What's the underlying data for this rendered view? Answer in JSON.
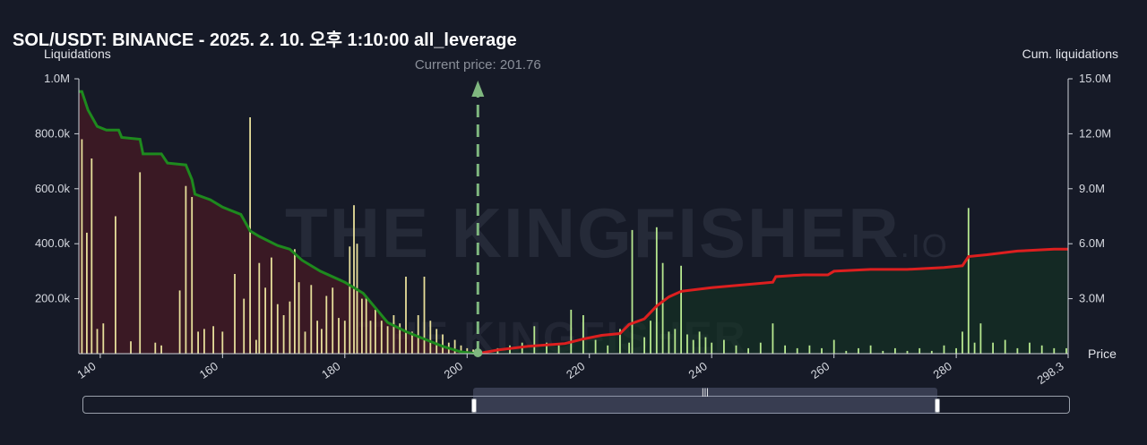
{
  "title": "SOL/USDT: BINANCE - 2025. 2. 10. 오후 1:10:00 all_leverage",
  "left_axis_title": "Liquidations",
  "right_axis_title": "Cum. liquidations",
  "x_axis_title": "Price",
  "current_price_label": "Current price: 201.76",
  "watermark": {
    "brand": "THE KINGFISHER",
    "suffix": ".IO"
  },
  "colors": {
    "background": "#161a27",
    "long_bars": "#e6de9a",
    "short_bars": "#b7e88f",
    "long_cum_line": "#1e8a1e",
    "short_cum_line": "#dd1f1f",
    "long_fill": "rgba(90,25,35,0.55)",
    "short_fill": "rgba(20,55,35,0.55)",
    "current_price_line": "#7fb77f"
  },
  "chart_data": {
    "type": "bar",
    "xlim": [
      136.5,
      298.3
    ],
    "x_ticks": [
      "140",
      "160",
      "180",
      "200",
      "220",
      "240",
      "260",
      "280",
      "298.3"
    ],
    "y_left_ticks": [
      "1.0M",
      "800.0k",
      "600.0k",
      "400.0k",
      "200.0k"
    ],
    "y_left_lim": [
      0,
      1000000
    ],
    "y_right_ticks": [
      "15.0M",
      "12.0M",
      "9.0M",
      "6.0M",
      "3.0M"
    ],
    "y_right_lim": [
      0,
      15000000
    ],
    "current_price": 201.76,
    "long_liquidations": [
      {
        "x": 137,
        "y": 780000
      },
      {
        "x": 137.8,
        "y": 440000
      },
      {
        "x": 138.6,
        "y": 710000
      },
      {
        "x": 139.5,
        "y": 90000
      },
      {
        "x": 140.5,
        "y": 110000
      },
      {
        "x": 142.5,
        "y": 500000
      },
      {
        "x": 145,
        "y": 45000
      },
      {
        "x": 146.5,
        "y": 660000
      },
      {
        "x": 149,
        "y": 40000
      },
      {
        "x": 150,
        "y": 30000
      },
      {
        "x": 153,
        "y": 230000
      },
      {
        "x": 154,
        "y": 610000
      },
      {
        "x": 155,
        "y": 570000
      },
      {
        "x": 156,
        "y": 80000
      },
      {
        "x": 157,
        "y": 90000
      },
      {
        "x": 158.5,
        "y": 100000
      },
      {
        "x": 160,
        "y": 80000
      },
      {
        "x": 162,
        "y": 290000
      },
      {
        "x": 163.5,
        "y": 200000
      },
      {
        "x": 164.5,
        "y": 860000
      },
      {
        "x": 165.5,
        "y": 50000
      },
      {
        "x": 166,
        "y": 330000
      },
      {
        "x": 167,
        "y": 240000
      },
      {
        "x": 168,
        "y": 350000
      },
      {
        "x": 169,
        "y": 180000
      },
      {
        "x": 170,
        "y": 140000
      },
      {
        "x": 171,
        "y": 190000
      },
      {
        "x": 171.8,
        "y": 380000
      },
      {
        "x": 172.5,
        "y": 260000
      },
      {
        "x": 173.5,
        "y": 80000
      },
      {
        "x": 174.5,
        "y": 250000
      },
      {
        "x": 175.5,
        "y": 120000
      },
      {
        "x": 176.2,
        "y": 90000
      },
      {
        "x": 177,
        "y": 210000
      },
      {
        "x": 178,
        "y": 240000
      },
      {
        "x": 179,
        "y": 130000
      },
      {
        "x": 180,
        "y": 120000
      },
      {
        "x": 180.8,
        "y": 390000
      },
      {
        "x": 181.5,
        "y": 540000
      },
      {
        "x": 182,
        "y": 400000
      },
      {
        "x": 182.8,
        "y": 200000
      },
      {
        "x": 183.5,
        "y": 210000
      },
      {
        "x": 184.2,
        "y": 120000
      },
      {
        "x": 185,
        "y": 160000
      },
      {
        "x": 186,
        "y": 120000
      },
      {
        "x": 187,
        "y": 100000
      },
      {
        "x": 188,
        "y": 140000
      },
      {
        "x": 189,
        "y": 110000
      },
      {
        "x": 190,
        "y": 280000
      },
      {
        "x": 191,
        "y": 80000
      },
      {
        "x": 192,
        "y": 140000
      },
      {
        "x": 193,
        "y": 280000
      },
      {
        "x": 194,
        "y": 120000
      },
      {
        "x": 195,
        "y": 90000
      },
      {
        "x": 196,
        "y": 70000
      },
      {
        "x": 197,
        "y": 40000
      },
      {
        "x": 198,
        "y": 50000
      },
      {
        "x": 199,
        "y": 30000
      },
      {
        "x": 200,
        "y": 20000
      },
      {
        "x": 201,
        "y": 15000
      }
    ],
    "short_liquidations": [
      {
        "x": 203,
        "y": 10000
      },
      {
        "x": 205,
        "y": 20000
      },
      {
        "x": 207,
        "y": 30000
      },
      {
        "x": 209,
        "y": 40000
      },
      {
        "x": 211,
        "y": 100000
      },
      {
        "x": 213,
        "y": 40000
      },
      {
        "x": 215,
        "y": 30000
      },
      {
        "x": 217,
        "y": 160000
      },
      {
        "x": 219,
        "y": 140000
      },
      {
        "x": 221,
        "y": 50000
      },
      {
        "x": 223,
        "y": 30000
      },
      {
        "x": 225,
        "y": 90000
      },
      {
        "x": 226.5,
        "y": 40000
      },
      {
        "x": 227,
        "y": 450000
      },
      {
        "x": 229,
        "y": 60000
      },
      {
        "x": 230,
        "y": 120000
      },
      {
        "x": 231,
        "y": 460000
      },
      {
        "x": 232,
        "y": 330000
      },
      {
        "x": 233,
        "y": 80000
      },
      {
        "x": 234,
        "y": 90000
      },
      {
        "x": 235,
        "y": 320000
      },
      {
        "x": 236,
        "y": 70000
      },
      {
        "x": 237,
        "y": 50000
      },
      {
        "x": 238,
        "y": 80000
      },
      {
        "x": 239,
        "y": 60000
      },
      {
        "x": 240,
        "y": 40000
      },
      {
        "x": 242,
        "y": 50000
      },
      {
        "x": 244,
        "y": 30000
      },
      {
        "x": 246,
        "y": 20000
      },
      {
        "x": 248,
        "y": 40000
      },
      {
        "x": 250,
        "y": 110000
      },
      {
        "x": 252,
        "y": 30000
      },
      {
        "x": 254,
        "y": 20000
      },
      {
        "x": 256,
        "y": 30000
      },
      {
        "x": 258,
        "y": 20000
      },
      {
        "x": 260,
        "y": 50000
      },
      {
        "x": 262,
        "y": 10000
      },
      {
        "x": 264,
        "y": 20000
      },
      {
        "x": 266,
        "y": 30000
      },
      {
        "x": 268,
        "y": 10000
      },
      {
        "x": 270,
        "y": 20000
      },
      {
        "x": 272,
        "y": 10000
      },
      {
        "x": 274,
        "y": 20000
      },
      {
        "x": 276,
        "y": 10000
      },
      {
        "x": 278,
        "y": 30000
      },
      {
        "x": 280,
        "y": 20000
      },
      {
        "x": 281,
        "y": 80000
      },
      {
        "x": 282,
        "y": 530000
      },
      {
        "x": 283,
        "y": 40000
      },
      {
        "x": 284,
        "y": 110000
      },
      {
        "x": 286,
        "y": 40000
      },
      {
        "x": 288,
        "y": 50000
      },
      {
        "x": 290,
        "y": 20000
      },
      {
        "x": 292,
        "y": 40000
      },
      {
        "x": 294,
        "y": 30000
      },
      {
        "x": 296,
        "y": 20000
      },
      {
        "x": 298,
        "y": 20000
      }
    ],
    "long_cumulative": [
      {
        "x": 136.5,
        "y": 14300000
      },
      {
        "x": 137,
        "y": 14300000
      },
      {
        "x": 138,
        "y": 13300000
      },
      {
        "x": 139.5,
        "y": 12400000
      },
      {
        "x": 141,
        "y": 12200000
      },
      {
        "x": 143,
        "y": 12200000
      },
      {
        "x": 143.5,
        "y": 11800000
      },
      {
        "x": 146.5,
        "y": 11700000
      },
      {
        "x": 147,
        "y": 10900000
      },
      {
        "x": 150,
        "y": 10900000
      },
      {
        "x": 151,
        "y": 10400000
      },
      {
        "x": 154,
        "y": 10300000
      },
      {
        "x": 155,
        "y": 9500000
      },
      {
        "x": 155.5,
        "y": 8700000
      },
      {
        "x": 158,
        "y": 8400000
      },
      {
        "x": 160,
        "y": 8000000
      },
      {
        "x": 163,
        "y": 7600000
      },
      {
        "x": 164.5,
        "y": 6700000
      },
      {
        "x": 166,
        "y": 6400000
      },
      {
        "x": 169,
        "y": 5900000
      },
      {
        "x": 171,
        "y": 5700000
      },
      {
        "x": 173,
        "y": 5100000
      },
      {
        "x": 176,
        "y": 4500000
      },
      {
        "x": 180,
        "y": 3900000
      },
      {
        "x": 183,
        "y": 3300000
      },
      {
        "x": 185,
        "y": 2500000
      },
      {
        "x": 187,
        "y": 1700000
      },
      {
        "x": 190,
        "y": 1200000
      },
      {
        "x": 193,
        "y": 800000
      },
      {
        "x": 196,
        "y": 400000
      },
      {
        "x": 199,
        "y": 100000
      },
      {
        "x": 201.76,
        "y": 0
      }
    ],
    "short_cumulative": [
      {
        "x": 201.76,
        "y": 0
      },
      {
        "x": 205,
        "y": 200000
      },
      {
        "x": 210,
        "y": 400000
      },
      {
        "x": 216,
        "y": 550000
      },
      {
        "x": 219,
        "y": 800000
      },
      {
        "x": 222,
        "y": 1000000
      },
      {
        "x": 225,
        "y": 1100000
      },
      {
        "x": 226.5,
        "y": 1600000
      },
      {
        "x": 229,
        "y": 1900000
      },
      {
        "x": 231,
        "y": 2600000
      },
      {
        "x": 233,
        "y": 3100000
      },
      {
        "x": 235,
        "y": 3400000
      },
      {
        "x": 240,
        "y": 3600000
      },
      {
        "x": 245,
        "y": 3750000
      },
      {
        "x": 250,
        "y": 3900000
      },
      {
        "x": 250.5,
        "y": 4200000
      },
      {
        "x": 255,
        "y": 4300000
      },
      {
        "x": 259,
        "y": 4300000
      },
      {
        "x": 260,
        "y": 4500000
      },
      {
        "x": 266,
        "y": 4600000
      },
      {
        "x": 272,
        "y": 4600000
      },
      {
        "x": 278,
        "y": 4700000
      },
      {
        "x": 281,
        "y": 4800000
      },
      {
        "x": 282,
        "y": 5300000
      },
      {
        "x": 285,
        "y": 5400000
      },
      {
        "x": 290,
        "y": 5600000
      },
      {
        "x": 296,
        "y": 5700000
      },
      {
        "x": 298.3,
        "y": 5700000
      }
    ]
  }
}
